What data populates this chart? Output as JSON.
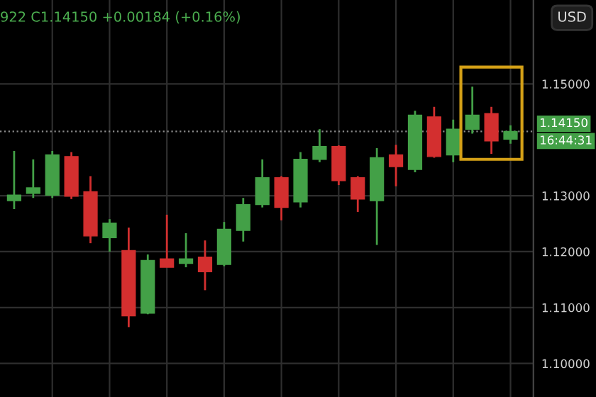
{
  "chart_data": {
    "type": "candlestick",
    "categories": [
      null,
      null,
      null,
      null,
      null,
      null,
      null,
      null,
      null,
      null,
      null,
      null,
      null,
      null,
      null,
      null,
      null,
      null,
      null,
      null,
      null,
      null,
      null,
      null,
      null,
      null,
      null
    ],
    "ohlc": [
      [
        1.1291,
        1.138,
        1.1276,
        1.1301
      ],
      [
        1.1304,
        1.1365,
        1.1296,
        1.1314
      ],
      [
        1.1301,
        1.138,
        1.1296,
        1.1373
      ],
      [
        1.137,
        1.1378,
        1.1294,
        1.1299
      ],
      [
        1.1307,
        1.1335,
        1.1215,
        1.1228
      ],
      [
        1.1225,
        1.1258,
        1.12,
        1.1251
      ],
      [
        1.1202,
        1.1243,
        1.1065,
        1.1085
      ],
      [
        1.109,
        1.1195,
        1.1088,
        1.1184
      ],
      [
        1.1187,
        1.1266,
        1.1172,
        1.1172
      ],
      [
        1.1179,
        1.1233,
        1.1172,
        1.1187
      ],
      [
        1.119,
        1.122,
        1.1131,
        1.1164
      ],
      [
        1.1177,
        1.1253,
        1.1174,
        1.124
      ],
      [
        1.1238,
        1.1296,
        1.1218,
        1.1284
      ],
      [
        1.1284,
        1.1365,
        1.1279,
        1.1332
      ],
      [
        1.1332,
        1.1335,
        1.1256,
        1.1279
      ],
      [
        1.1289,
        1.1378,
        1.1279,
        1.1365
      ],
      [
        1.1365,
        1.1419,
        1.136,
        1.1388
      ],
      [
        1.1388,
        1.139,
        1.1319,
        1.1327
      ],
      [
        1.1332,
        1.1335,
        1.1271,
        1.1294
      ],
      [
        1.1291,
        1.1385,
        1.1212,
        1.1368
      ],
      [
        1.1373,
        1.1391,
        1.1317,
        1.1352
      ],
      [
        1.1347,
        1.1452,
        1.1342,
        1.1444
      ],
      [
        1.1441,
        1.1459,
        1.1368,
        1.137
      ],
      [
        1.1373,
        1.1436,
        1.136,
        1.1419
      ],
      [
        1.1419,
        1.1495,
        1.1411,
        1.1444
      ],
      [
        1.1447,
        1.1459,
        1.1375,
        1.1398
      ],
      [
        1.1401,
        1.1426,
        1.1393,
        1.1415
      ]
    ],
    "colors": [
      "#43a047",
      "#43a047",
      "#43a047",
      "#d32f2f",
      "#d32f2f",
      "#43a047",
      "#d32f2f",
      "#43a047",
      "#d32f2f",
      "#43a047",
      "#d32f2f",
      "#43a047",
      "#43a047",
      "#43a047",
      "#d32f2f",
      "#43a047",
      "#43a047",
      "#d32f2f",
      "#d32f2f",
      "#43a047",
      "#d32f2f",
      "#43a047",
      "#d32f2f",
      "#43a047",
      "#43a047",
      "#d32f2f",
      "#43a047"
    ],
    "ylim": [
      1.094,
      1.165
    ],
    "yticks": [
      {
        "value": 1.1,
        "label": "1.10000"
      },
      {
        "value": 1.11,
        "label": "1.11000"
      },
      {
        "value": 1.12,
        "label": "1.12000"
      },
      {
        "value": 1.13,
        "label": "1.13000"
      },
      {
        "value": 1.15,
        "label": "1.15000"
      }
    ],
    "grid": true,
    "tick_labels": "y",
    "ref_lines": [
      {
        "axis": "y",
        "value": 1.1415,
        "label": "1.14150",
        "color": "#8a8a8a",
        "line_style": "dotted"
      }
    ],
    "annotations": [
      "922 C1.14150 +0.00184 (+0.16%)",
      "USD",
      "16:44:31"
    ]
  }
}
